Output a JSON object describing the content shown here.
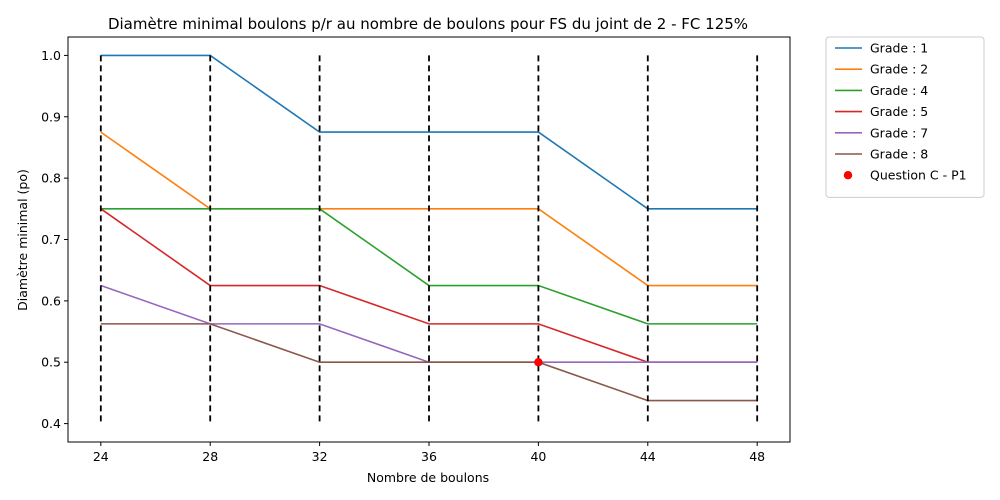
{
  "chart_data": {
    "type": "line",
    "title": "Diamètre minimal boulons p/r au nombre de boulons pour FS du joint de 2 - FC 125%",
    "xlabel": "Nombre de boulons",
    "ylabel": "Diamètre minimal (po)",
    "x": [
      24,
      28,
      32,
      36,
      40,
      44,
      48
    ],
    "x_ticks": [
      "24",
      "28",
      "32",
      "36",
      "40",
      "44",
      "48"
    ],
    "y_ticks": [
      "0.4",
      "0.5",
      "0.6",
      "0.7",
      "0.8",
      "0.9",
      "1.0"
    ],
    "xlim": [
      22.8,
      49.2
    ],
    "ylim": [
      0.37,
      1.03
    ],
    "grid": false,
    "legend_position": "outside-right",
    "vlines": {
      "x": [
        24,
        28,
        32,
        36,
        40,
        44,
        48
      ],
      "ymin": 0.4,
      "ymax": 1.0,
      "style": "dashed",
      "color": "#000000"
    },
    "series": [
      {
        "name": "Grade : 1",
        "color": "#1f77b4",
        "values": [
          1.0,
          1.0,
          0.875,
          0.875,
          0.875,
          0.75,
          0.75
        ]
      },
      {
        "name": "Grade : 2",
        "color": "#ff7f0e",
        "values": [
          0.875,
          0.75,
          0.75,
          0.75,
          0.75,
          0.625,
          0.625
        ]
      },
      {
        "name": "Grade : 4",
        "color": "#2ca02c",
        "values": [
          0.75,
          0.75,
          0.75,
          0.625,
          0.625,
          0.5625,
          0.5625
        ]
      },
      {
        "name": "Grade : 5",
        "color": "#d62728",
        "values": [
          0.75,
          0.625,
          0.625,
          0.5625,
          0.5625,
          0.5,
          0.5
        ]
      },
      {
        "name": "Grade : 7",
        "color": "#9467bd",
        "values": [
          0.625,
          0.5625,
          0.5625,
          0.5,
          0.5,
          0.5,
          0.5
        ]
      },
      {
        "name": "Grade : 8",
        "color": "#8c564b",
        "values": [
          0.5625,
          0.5625,
          0.5,
          0.5,
          0.5,
          0.4375,
          0.4375
        ]
      }
    ],
    "points": [
      {
        "name": "Question C - P1",
        "color": "#ff0000",
        "x": 40,
        "y": 0.5
      }
    ]
  }
}
